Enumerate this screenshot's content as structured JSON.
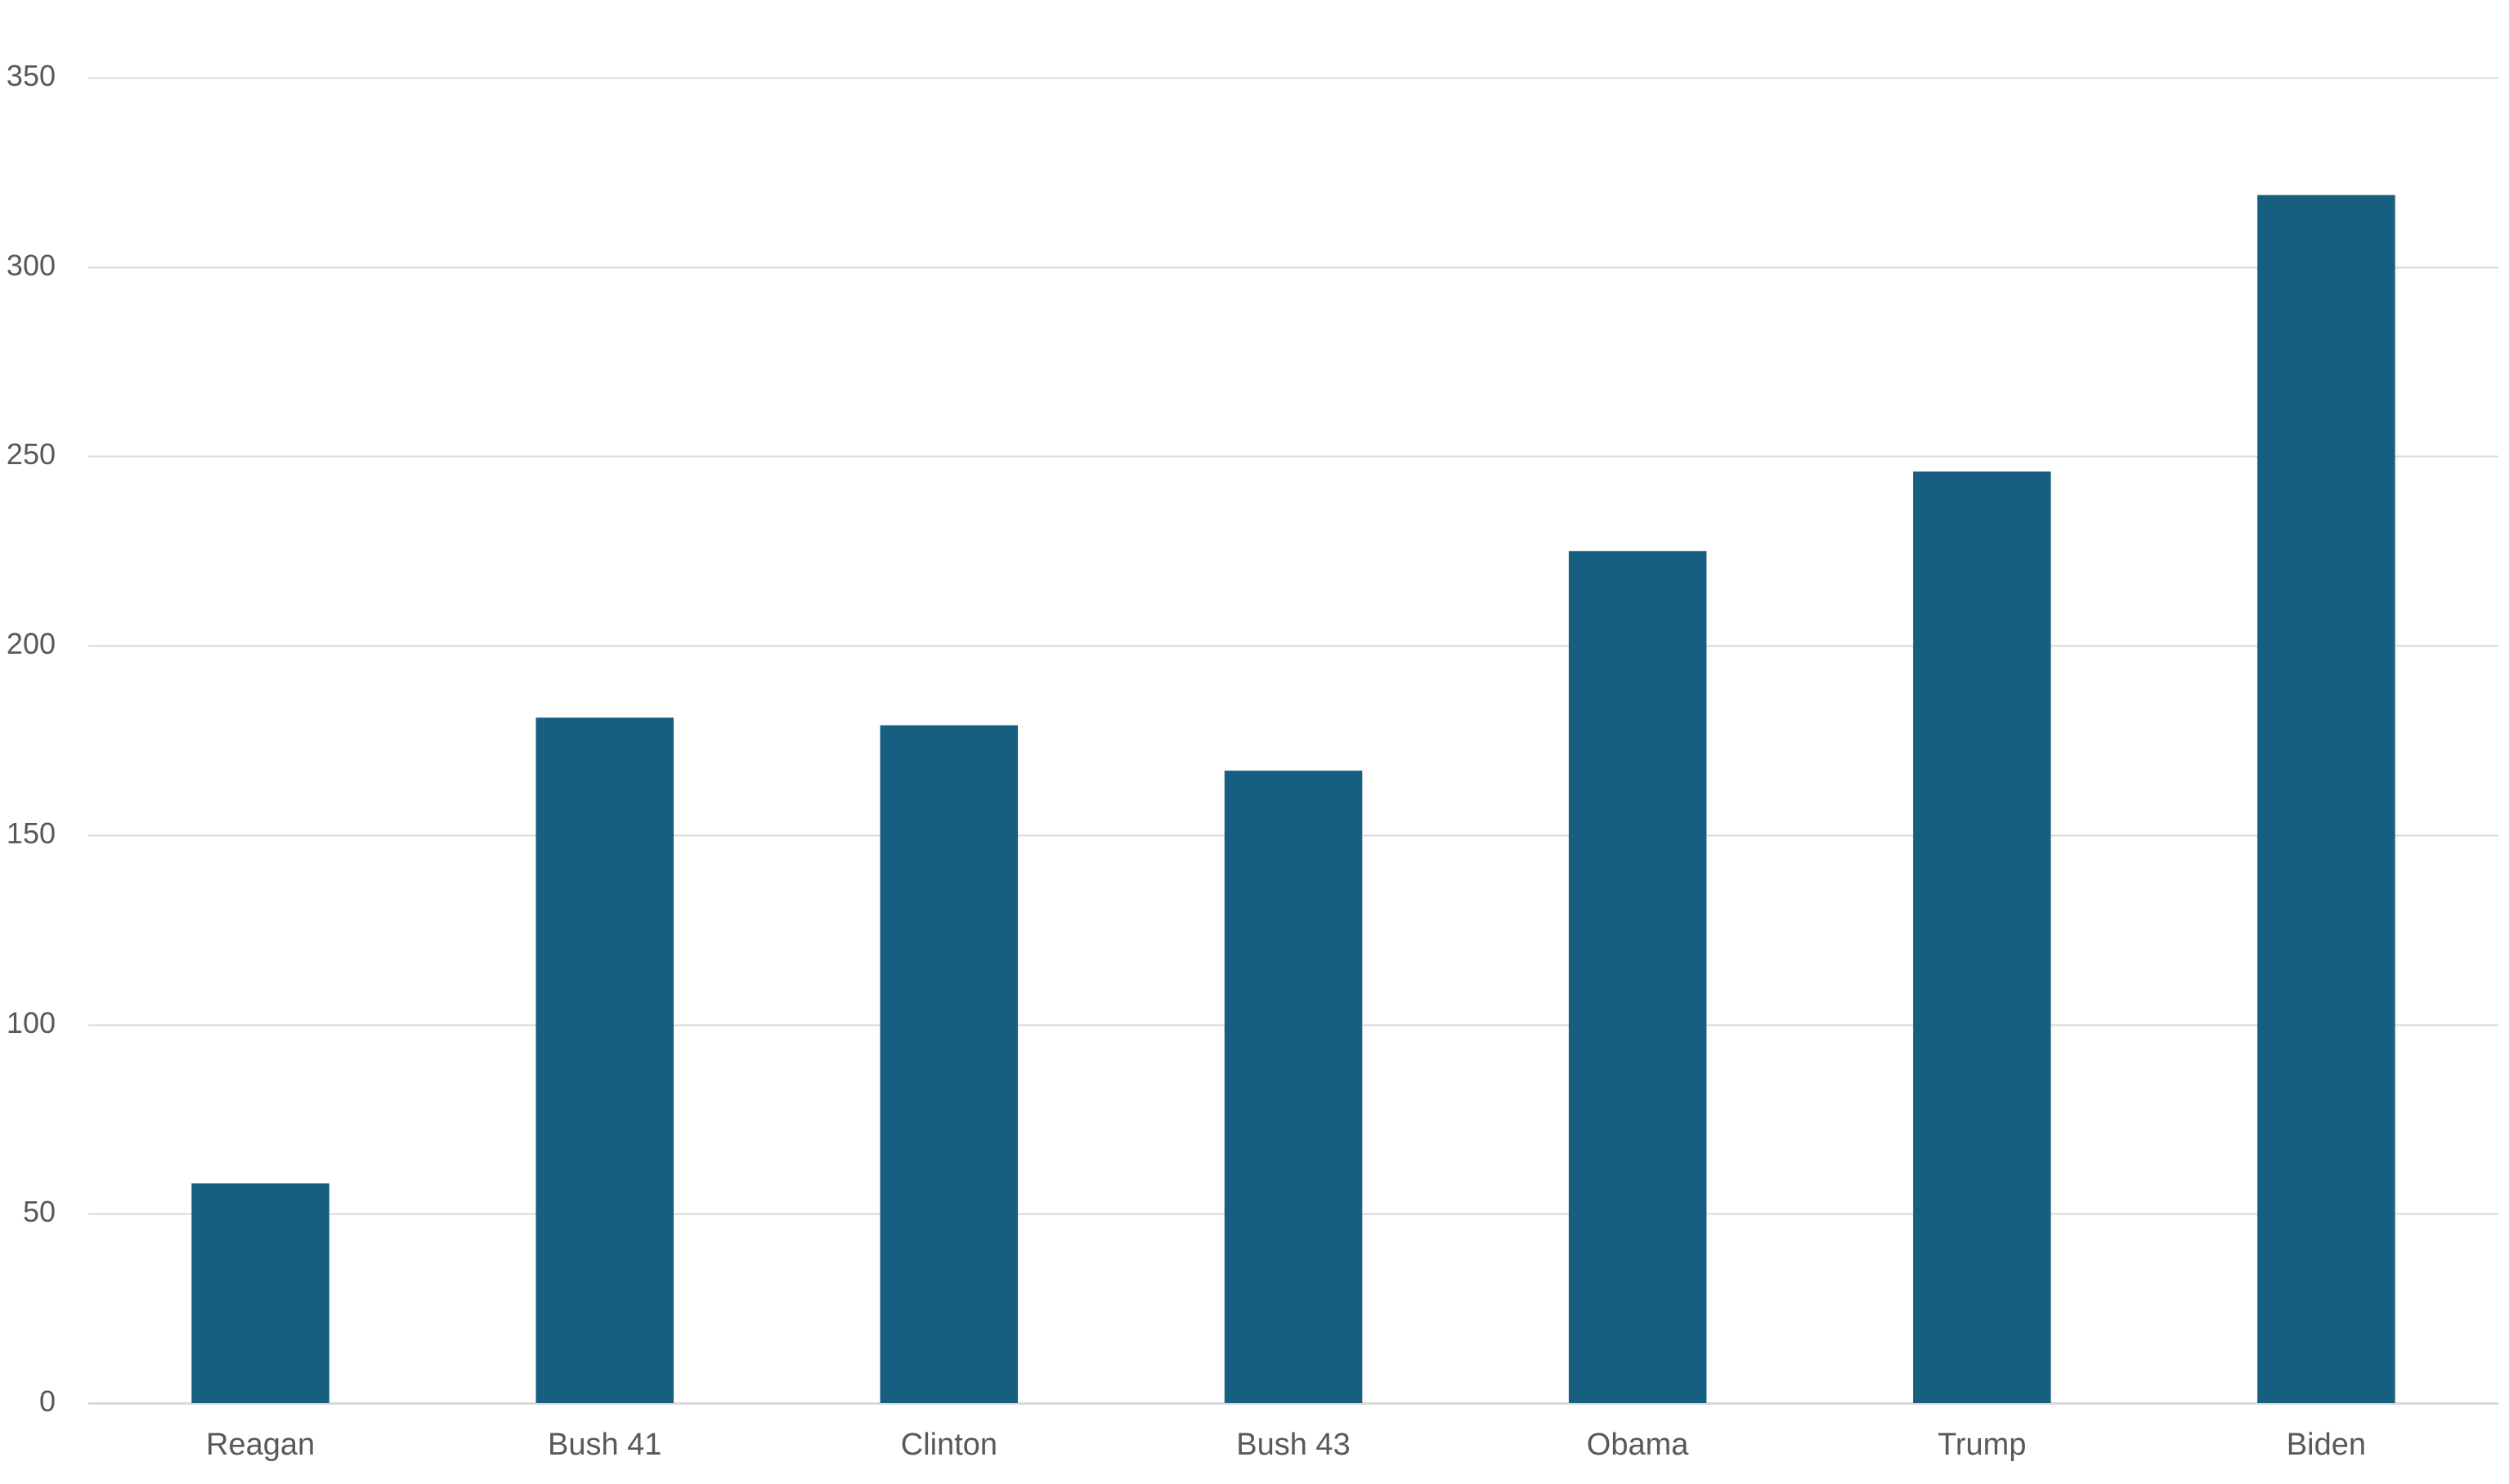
{
  "chart_data": {
    "type": "bar",
    "title": "",
    "xlabel": "",
    "ylabel": "",
    "categories": [
      "Reagan",
      "Bush 41",
      "Clinton",
      "Bush 43",
      "Obama",
      "Trump",
      "Biden"
    ],
    "values": [
      58,
      181,
      179,
      167,
      225,
      246,
      319
    ],
    "ylim": [
      0,
      350
    ],
    "yticks": [
      0,
      50,
      100,
      150,
      200,
      250,
      300,
      350
    ],
    "grid": true,
    "legend": "none",
    "bar_color": "#175F80",
    "grid_color": "#D9D9D9",
    "label_color": "#595959"
  }
}
